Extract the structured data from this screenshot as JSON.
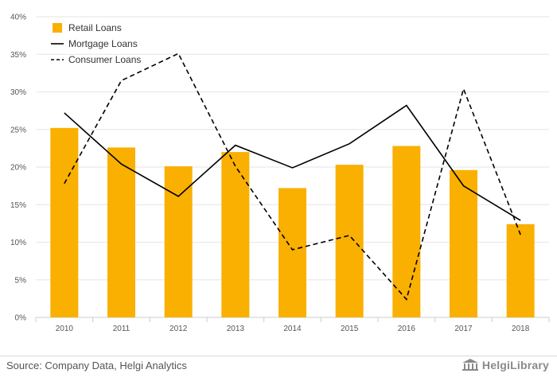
{
  "chart_data": {
    "type": "bar",
    "categories": [
      "2010",
      "2011",
      "2012",
      "2013",
      "2014",
      "2015",
      "2016",
      "2017",
      "2018"
    ],
    "series": [
      {
        "name": "Retail Loans",
        "kind": "bar",
        "color": "#F9B000",
        "values": [
          25.2,
          22.6,
          20.1,
          22.0,
          17.2,
          20.3,
          22.8,
          19.6,
          12.4
        ]
      },
      {
        "name": "Mortgage Loans",
        "kind": "line",
        "dash": "solid",
        "color": "#000000",
        "values": [
          27.2,
          20.4,
          16.1,
          22.9,
          19.9,
          23.1,
          28.2,
          17.5,
          12.9
        ]
      },
      {
        "name": "Consumer Loans",
        "kind": "line",
        "dash": "dashed",
        "color": "#000000",
        "values": [
          17.8,
          31.5,
          35.1,
          20.1,
          9.0,
          10.9,
          2.4,
          30.4,
          11.0
        ]
      }
    ],
    "ylim": [
      0,
      40
    ],
    "yticks": [
      0,
      5,
      10,
      15,
      20,
      25,
      30,
      35,
      40
    ],
    "ytick_labels": [
      "0%",
      "5%",
      "10%",
      "15%",
      "20%",
      "25%",
      "30%",
      "35%",
      "40%"
    ],
    "grid": true,
    "legend_position": "top-left",
    "title": "",
    "xlabel": "",
    "ylabel": ""
  },
  "footer": {
    "source": "Source: Company Data, Helgi Analytics",
    "logo_text": "HelgiLibrary"
  },
  "colors": {
    "bar": "#F9B000",
    "grid": "#e6e6e6",
    "axis": "#cccccc"
  }
}
